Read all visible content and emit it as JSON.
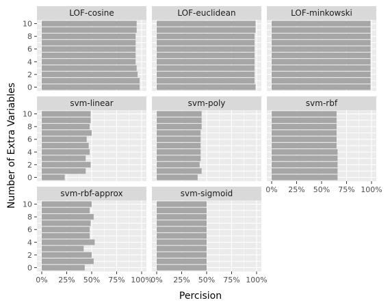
{
  "chart_data": {
    "type": "bar",
    "orientation": "horizontal",
    "facet_wrap": true,
    "xlabel": "Percision",
    "ylabel": "Number of Extra Variables",
    "xlim": [
      0,
      1
    ],
    "x_ticks": [
      0,
      0.25,
      0.5,
      0.75,
      1
    ],
    "x_tick_labels": [
      "0%",
      "25%",
      "50%",
      "75%",
      "100%"
    ],
    "y_ticks": [
      0,
      2,
      4,
      6,
      8,
      10
    ],
    "y_tick_labels": [
      "0",
      "2",
      "4",
      "6",
      "8",
      "10"
    ],
    "categories": [
      0,
      1,
      2,
      3,
      4,
      5,
      6,
      7,
      8,
      9,
      10
    ],
    "grid": true,
    "bar_color": "#A6A6A6",
    "panel_background": "#EBEBEB",
    "strip_background": "#D9D9D9",
    "panels": [
      {
        "name": "LOF-cosine",
        "values": [
          0.98,
          0.98,
          0.96,
          0.95,
          0.94,
          0.94,
          0.94,
          0.94,
          0.94,
          0.95,
          0.95
        ]
      },
      {
        "name": "LOF-euclidean",
        "values": [
          0.99,
          0.98,
          0.98,
          0.98,
          0.98,
          0.98,
          0.98,
          0.98,
          0.98,
          0.99,
          0.99
        ]
      },
      {
        "name": "LOF-minkowski",
        "values": [
          0.99,
          0.99,
          0.99,
          0.99,
          0.99,
          0.99,
          0.99,
          0.99,
          0.99,
          0.99,
          0.99
        ]
      },
      {
        "name": "svm-linear",
        "values": [
          0.23,
          0.44,
          0.49,
          0.44,
          0.48,
          0.47,
          0.45,
          0.5,
          0.48,
          0.49,
          0.49
        ]
      },
      {
        "name": "svm-poly",
        "values": [
          0.41,
          0.45,
          0.43,
          0.44,
          0.44,
          0.44,
          0.44,
          0.44,
          0.45,
          0.45,
          0.45
        ]
      },
      {
        "name": "svm-rbf",
        "values": [
          0.66,
          0.66,
          0.66,
          0.66,
          0.66,
          0.65,
          0.65,
          0.65,
          0.65,
          0.65,
          0.65
        ]
      },
      {
        "name": "svm-rbf-approx",
        "values": [
          0.43,
          0.52,
          0.5,
          0.42,
          0.53,
          0.48,
          0.48,
          0.49,
          0.52,
          0.48,
          0.5
        ]
      },
      {
        "name": "svm-sigmoid",
        "values": [
          0.5,
          0.5,
          0.5,
          0.5,
          0.5,
          0.5,
          0.5,
          0.5,
          0.5,
          0.5,
          0.5
        ]
      }
    ]
  }
}
